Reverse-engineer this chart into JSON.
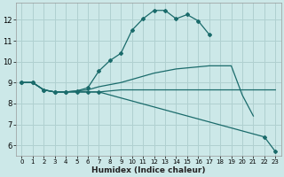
{
  "xlabel": "Humidex (Indice chaleur)",
  "bg_color": "#cce8e8",
  "grid_color": "#b0d0d0",
  "line_color": "#1a6b6b",
  "xlim": [
    -0.5,
    23.5
  ],
  "ylim": [
    5.5,
    12.8
  ],
  "xticks": [
    0,
    1,
    2,
    3,
    4,
    5,
    6,
    7,
    8,
    9,
    10,
    11,
    12,
    13,
    14,
    15,
    16,
    17,
    18,
    19,
    20,
    21,
    22,
    23
  ],
  "yticks": [
    6,
    7,
    8,
    9,
    10,
    11,
    12
  ],
  "series": [
    {
      "x": [
        0,
        1,
        2,
        3,
        4,
        5,
        6,
        7,
        8,
        9,
        10,
        11,
        12,
        13,
        14,
        15,
        16,
        17
      ],
      "y": [
        9.0,
        9.0,
        8.65,
        8.55,
        8.55,
        8.6,
        8.75,
        9.55,
        10.05,
        10.4,
        11.5,
        12.05,
        12.45,
        12.45,
        12.05,
        12.25,
        11.95,
        11.3
      ],
      "has_markers": true
    },
    {
      "x": [
        0,
        1,
        2,
        3,
        4,
        5,
        6,
        7,
        8,
        9,
        10,
        11,
        12,
        13,
        14,
        15,
        16,
        17,
        18,
        19,
        20,
        21
      ],
      "y": [
        9.0,
        9.0,
        8.65,
        8.55,
        8.55,
        8.6,
        8.65,
        8.8,
        8.9,
        9.0,
        9.15,
        9.3,
        9.45,
        9.55,
        9.65,
        9.7,
        9.75,
        9.8,
        9.8,
        9.8,
        8.4,
        7.4
      ],
      "has_markers": false
    },
    {
      "x": [
        0,
        1,
        2,
        3,
        4,
        5,
        6,
        7,
        8,
        9,
        10,
        11,
        12,
        13,
        14,
        15,
        16,
        17,
        18,
        19,
        20,
        21,
        22,
        23
      ],
      "y": [
        9.0,
        9.0,
        8.65,
        8.55,
        8.55,
        8.55,
        8.55,
        8.55,
        8.6,
        8.65,
        8.65,
        8.65,
        8.65,
        8.65,
        8.65,
        8.65,
        8.65,
        8.65,
        8.65,
        8.65,
        8.65,
        8.65,
        8.65,
        8.65
      ],
      "has_markers": false
    },
    {
      "x": [
        0,
        1,
        2,
        3,
        4,
        5,
        6,
        7,
        22,
        23
      ],
      "y": [
        9.0,
        9.0,
        8.65,
        8.55,
        8.55,
        8.55,
        8.55,
        8.55,
        6.4,
        5.7
      ],
      "has_markers": true
    }
  ]
}
